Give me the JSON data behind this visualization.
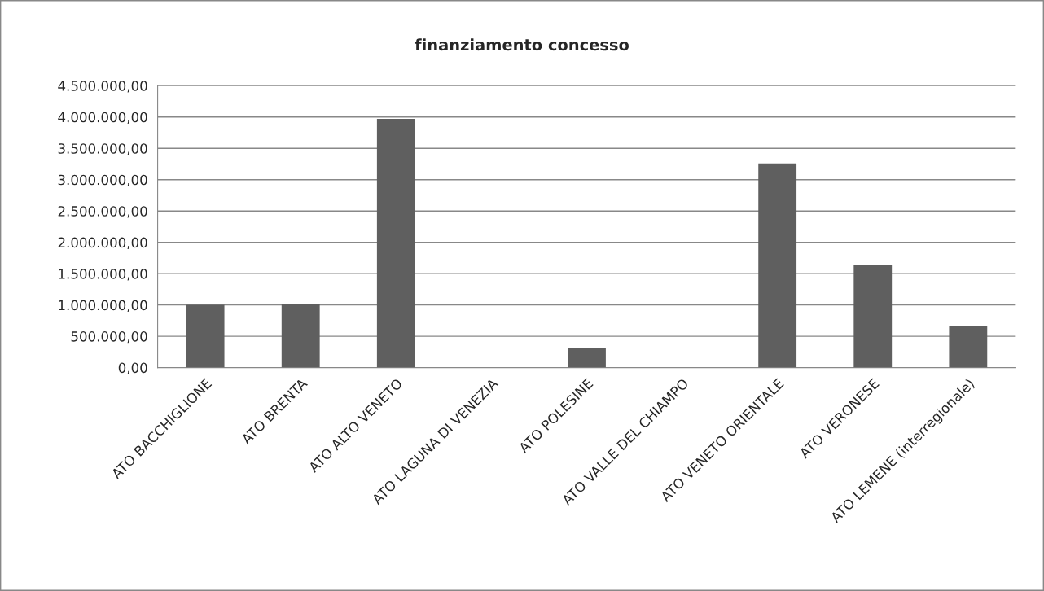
{
  "chart_data": {
    "type": "bar",
    "title": "finanziamento concesso",
    "categories": [
      "ATO BACCHIGLIONE",
      "ATO BRENTA",
      "ATO ALTO VENETO",
      "ATO LAGUNA DI VENEZIA",
      "ATO POLESINE",
      "ATO VALLE DEL CHIAMPO",
      "ATO VENETO ORIENTALE",
      "ATO VERONESE",
      "ATO LEMENE (interregionale)"
    ],
    "values": [
      1000000,
      1010000,
      3970000,
      0,
      310000,
      0,
      3260000,
      1640000,
      660000
    ],
    "color": "#5f5f5f",
    "ylim": [
      0,
      4500000
    ],
    "yticks": [
      {
        "value": 0,
        "label": "0,00"
      },
      {
        "value": 500000,
        "label": "500.000,00"
      },
      {
        "value": 1000000,
        "label": "1.000.000,00"
      },
      {
        "value": 1500000,
        "label": "1.500.000,00"
      },
      {
        "value": 2000000,
        "label": "2.000.000,00"
      },
      {
        "value": 2500000,
        "label": "2.500.000,00"
      },
      {
        "value": 3000000,
        "label": "3.000.000,00"
      },
      {
        "value": 3500000,
        "label": "3.500.000,00"
      },
      {
        "value": 4000000,
        "label": "4.000.000,00"
      },
      {
        "value": 4500000,
        "label": "4.500.000,00"
      }
    ],
    "grid": "y",
    "legend": false
  }
}
